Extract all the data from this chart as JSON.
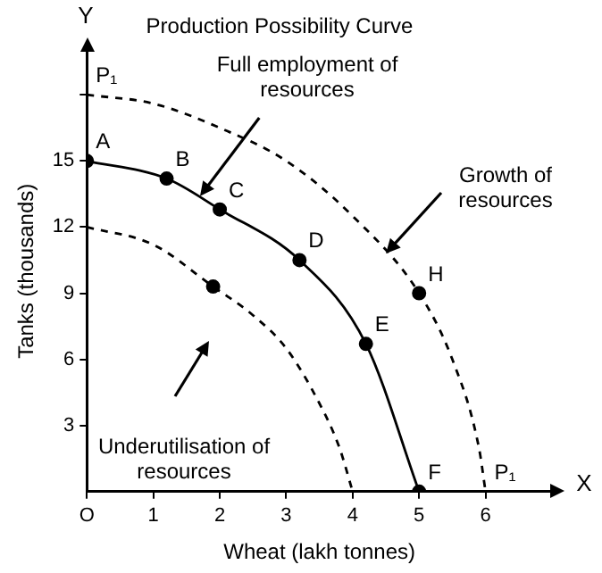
{
  "chart_data": {
    "type": "line",
    "title": "Production Possibility Curve",
    "xlabel": "Wheat (lakh tonnes)",
    "ylabel": "Tanks (thousands)",
    "xlim": [
      0,
      7
    ],
    "ylim": [
      0,
      20
    ],
    "xticks": [
      {
        "value": 0,
        "label": "O"
      },
      1,
      2,
      3,
      4,
      5,
      6
    ],
    "yticks": [
      3,
      6,
      9,
      12,
      15,
      {
        "value": 18,
        "label": null
      }
    ],
    "grid": false,
    "legend": false,
    "series": [
      {
        "color": "#000000",
        "line_style": "solid",
        "marker": "none",
        "x": [
          0,
          1.2,
          2,
          3.2,
          4.2,
          5
        ],
        "values": [
          15,
          14.2,
          12.8,
          10.5,
          6.7,
          0
        ]
      },
      {
        "color": "#000000",
        "line_style": "dashed",
        "marker": "none",
        "x": [
          0,
          1,
          1.9,
          2.5,
          3,
          3.5,
          3.8,
          4
        ],
        "values": [
          12,
          11.2,
          9.3,
          8,
          6.5,
          4,
          2,
          0
        ]
      },
      {
        "color": "#000000",
        "line_style": "dashed",
        "marker": "none",
        "x": [
          0,
          1,
          2,
          3,
          4,
          5,
          5.5,
          5.9,
          6
        ],
        "values": [
          18,
          17.6,
          16.5,
          15,
          12.5,
          9,
          6,
          2,
          0
        ],
        "value_labels": [
          "P₁",
          null,
          null,
          null,
          null,
          null,
          null,
          null,
          "P₁"
        ]
      },
      {
        "type": "scatter",
        "color": "#000000",
        "marker": "circle",
        "x": [
          0,
          1.2,
          2,
          3.2,
          4.2,
          5,
          5,
          1.9
        ],
        "values": [
          15,
          14.2,
          12.8,
          10.5,
          6.7,
          0,
          9,
          9.3
        ],
        "value_labels": [
          "A",
          "B",
          "C",
          "D",
          "E",
          "F",
          "H",
          null
        ]
      }
    ],
    "annotations": [
      {
        "text": "Full employment of resources",
        "x": 1.7,
        "y": 13.4
      },
      {
        "text": "Growth of resources",
        "x": 4.5,
        "y": 10.8
      },
      "Underutilisation of resources",
      "X",
      "Y"
    ]
  }
}
